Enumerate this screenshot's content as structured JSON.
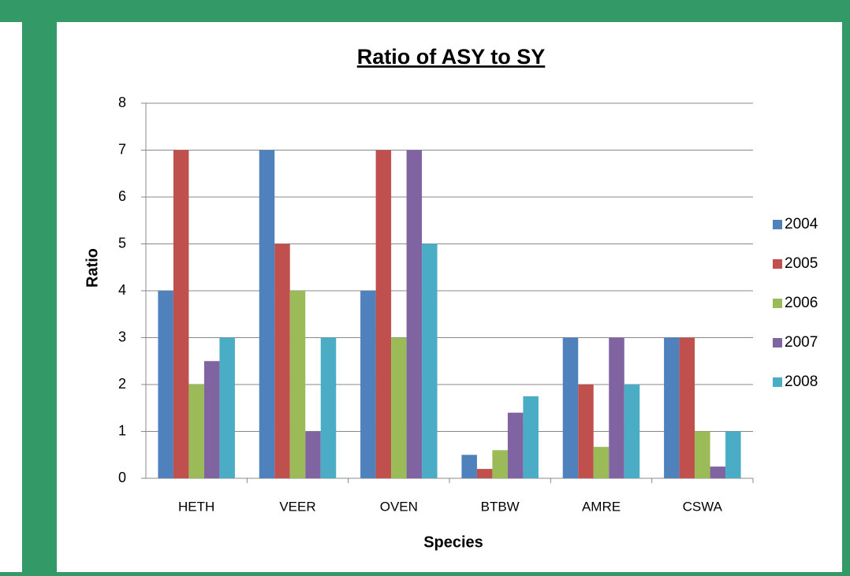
{
  "chart_data": {
    "type": "bar",
    "title": "Ratio of ASY to SY",
    "x_label": "Species",
    "y_label": "Ratio",
    "categories": [
      "HETH",
      "VEER",
      "OVEN",
      "BTBW",
      "AMRE",
      "CSWA"
    ],
    "series": [
      {
        "name": "2004",
        "color": "#4f81bd",
        "values": [
          4,
          7,
          4,
          0.5,
          3,
          3
        ]
      },
      {
        "name": "2005",
        "color": "#c0504d",
        "values": [
          7,
          5,
          7,
          0.2,
          2,
          3
        ]
      },
      {
        "name": "2006",
        "color": "#9bbb59",
        "values": [
          2,
          4,
          3,
          0.6,
          0.67,
          1
        ]
      },
      {
        "name": "2007",
        "color": "#8064a2",
        "values": [
          2.5,
          1,
          7,
          1.4,
          3,
          0.25
        ]
      },
      {
        "name": "2008",
        "color": "#4bacc6",
        "values": [
          3,
          3,
          5,
          1.75,
          2,
          1
        ]
      }
    ],
    "ylim": [
      0,
      8
    ],
    "yticks": [
      0,
      1,
      2,
      3,
      4,
      5,
      6,
      7,
      8
    ],
    "grid": true,
    "legend": "right"
  }
}
